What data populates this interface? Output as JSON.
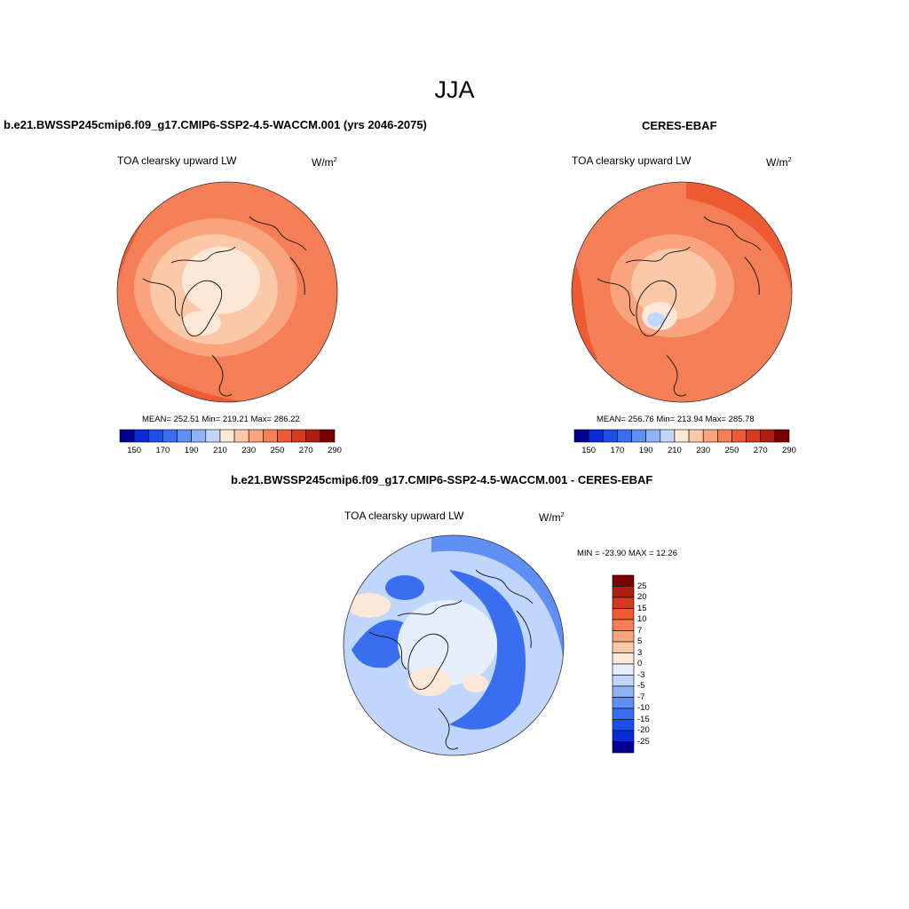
{
  "main_title": "JJA",
  "colors": {
    "abs_scale": [
      "#00008e",
      "#0a2ad6",
      "#1d4fe6",
      "#3a6ef0",
      "#5f8ef5",
      "#8fb2f7",
      "#c1d6fb",
      "#fde8d8",
      "#fbc8a8",
      "#f9a47e",
      "#f47e55",
      "#ee5a32",
      "#d63a1e",
      "#ad1f10",
      "#7a0000"
    ],
    "diff_scale": [
      "#00008e",
      "#0a2ad6",
      "#1d4fe6",
      "#3a6ef0",
      "#5f8ef5",
      "#8fb2f7",
      "#c1d6fb",
      "#e6eefc",
      "#fde8d8",
      "#fbc8a8",
      "#f9a47e",
      "#f47e55",
      "#ee5a32",
      "#d63a1e",
      "#ad1f10",
      "#7a0000"
    ]
  },
  "panels": [
    {
      "title": "b.e21.BWSSP245cmip6.f09_g17.CMIP6-SSP2-4.5-WACCM.001 (yrs 2046-2075)",
      "variable": "TOA clearsky upward LW",
      "units": "W/m",
      "units_sup": "2",
      "stats": "MEAN= 252.51   Min= 219.21   Max= 286.22",
      "colorbar_ticks": [
        "150",
        "170",
        "190",
        "210",
        "230",
        "250",
        "270",
        "290"
      ]
    },
    {
      "title": "CERES-EBAF",
      "variable": "TOA clearsky upward LW",
      "units": "W/m",
      "units_sup": "2",
      "stats": "MEAN= 256.76   Min= 213.94   Max= 285.78",
      "colorbar_ticks": [
        "150",
        "170",
        "190",
        "210",
        "230",
        "250",
        "270",
        "290"
      ]
    },
    {
      "title": "b.e21.BWSSP245cmip6.f09_g17.CMIP6-SSP2-4.5-WACCM.001 - CERES-EBAF",
      "variable": "TOA clearsky upward LW",
      "units": "W/m",
      "units_sup": "2",
      "stats": "MIN = -23.90 MAX =  12.26",
      "colorbar_ticks": [
        "25",
        "20",
        "15",
        "10",
        "7",
        "5",
        "3",
        "0",
        "-3",
        "-5",
        "-7",
        "-10",
        "-15",
        "-20",
        "-25"
      ]
    }
  ]
}
